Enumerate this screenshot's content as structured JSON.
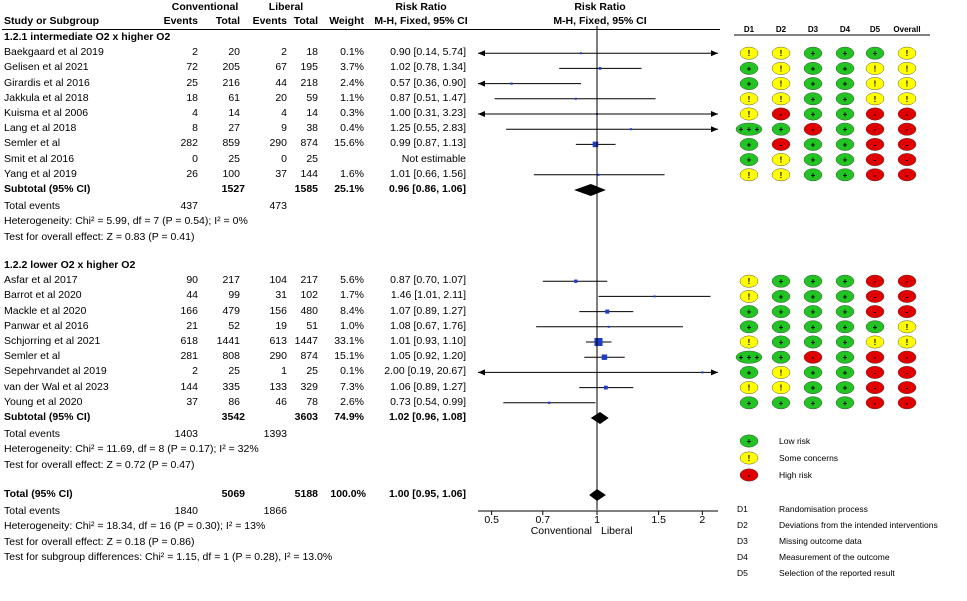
{
  "header": {
    "group1": "Conventional",
    "group2": "Liberal",
    "study_col": "Study or Subgroup",
    "events1": "Events",
    "total1": "Total",
    "events2": "Events",
    "total2": "Total",
    "weight": "Weight",
    "rr_title": "Risk Ratio",
    "rr_method": "M-H, Fixed, 95% CI",
    "plot_title": "Risk Ratio",
    "plot_method": "M-H, Fixed, 95% CI"
  },
  "chart_data": {
    "type": "forest",
    "x_axis": {
      "scale": "log",
      "ticks": [
        {
          "value": 0.5,
          "label": "0.5"
        },
        {
          "value": 0.7,
          "label": "0.7"
        },
        {
          "value": 1,
          "label": "1"
        },
        {
          "value": 1.5,
          "label": "1.5"
        },
        {
          "value": 2,
          "label": "2"
        }
      ],
      "range": [
        0.5,
        2
      ],
      "left_label": "Conventional",
      "right_label": "Liberal"
    },
    "subgroups": [
      {
        "title": "1.2.1 intermediate O2 x higher O2",
        "studies": [
          {
            "name": "Baekgaard et al 2019",
            "e1": "2",
            "t1": "20",
            "e2": "2",
            "t2": "18",
            "weight": "0.1%",
            "ci_text": "0.90 [0.14, 5.74]",
            "rr": 0.9,
            "lo": 0.14,
            "hi": 5.74,
            "rob": [
              "!",
              "!",
              "+",
              "+",
              "+",
              "!"
            ]
          },
          {
            "name": "Gelisen et al 2021",
            "e1": "72",
            "t1": "205",
            "e2": "67",
            "t2": "195",
            "weight": "3.7%",
            "ci_text": "1.02 [0.78, 1.34]",
            "rr": 1.02,
            "lo": 0.78,
            "hi": 1.34,
            "rob": [
              "+",
              "!",
              "+",
              "+",
              "!",
              "!"
            ]
          },
          {
            "name": "Girardis et al 2016",
            "e1": "25",
            "t1": "216",
            "e2": "44",
            "t2": "218",
            "weight": "2.4%",
            "ci_text": "0.57 [0.36, 0.90]",
            "rr": 0.57,
            "lo": 0.36,
            "hi": 0.9,
            "rob": [
              "+",
              "!",
              "+",
              "+",
              "!",
              "!"
            ]
          },
          {
            "name": "Jakkula et al 2018",
            "e1": "18",
            "t1": "61",
            "e2": "20",
            "t2": "59",
            "weight": "1.1%",
            "ci_text": "0.87 [0.51, 1.47]",
            "rr": 0.87,
            "lo": 0.51,
            "hi": 1.47,
            "rob": [
              "!",
              "!",
              "+",
              "+",
              "!",
              "!"
            ]
          },
          {
            "name": "Kuisma et al 2006",
            "e1": "4",
            "t1": "14",
            "e2": "4",
            "t2": "14",
            "weight": "0.3%",
            "ci_text": "1.00 [0.31, 3.23]",
            "rr": 1.0,
            "lo": 0.31,
            "hi": 3.23,
            "rob": [
              "!",
              "-",
              "+",
              "+",
              "-",
              "-"
            ]
          },
          {
            "name": "Lang et al 2018",
            "e1": "8",
            "t1": "27",
            "e2": "9",
            "t2": "38",
            "weight": "0.4%",
            "ci_text": "1.25 [0.55, 2.83]",
            "rr": 1.25,
            "lo": 0.55,
            "hi": 2.83,
            "rob": [
              "+ + +",
              "+",
              "-",
              "+",
              "-",
              "-"
            ]
          },
          {
            "name": "Semler et al",
            "e1": "282",
            "t1": "859",
            "e2": "290",
            "t2": "874",
            "weight": "15.6%",
            "ci_text": "0.99 [0.87, 1.13]",
            "rr": 0.99,
            "lo": 0.87,
            "hi": 1.13,
            "rob": [
              "+",
              "-",
              "+",
              "+",
              "-",
              "-"
            ]
          },
          {
            "name": "Smit et al 2016",
            "e1": "0",
            "t1": "25",
            "e2": "0",
            "t2": "25",
            "weight": "",
            "ci_text": "Not estimable",
            "rr": null,
            "lo": null,
            "hi": null,
            "rob": [
              "+",
              "!",
              "+",
              "+",
              "-",
              "-"
            ]
          },
          {
            "name": "Yang et al 2019",
            "e1": "26",
            "t1": "100",
            "e2": "37",
            "t2": "144",
            "weight": "1.6%",
            "ci_text": "1.01 [0.66, 1.56]",
            "rr": 1.01,
            "lo": 0.66,
            "hi": 1.56,
            "rob": [
              "!",
              "!",
              "+",
              "+",
              "-",
              "-"
            ]
          }
        ],
        "subtotal": {
          "label": "Subtotal (95% CI)",
          "t1": "1527",
          "t2": "1585",
          "weight": "25.1%",
          "ci_text": "0.96 [0.86, 1.06]",
          "rr": 0.96,
          "lo": 0.86,
          "hi": 1.06
        },
        "total_events": {
          "label": "Total events",
          "e1": "437",
          "e2": "473"
        },
        "heterogeneity": "Heterogeneity: Chi² = 5.99, df = 7 (P = 0.54); I² = 0%",
        "overall_effect": "Test for overall effect: Z = 0.83 (P = 0.41)"
      },
      {
        "title": "1.2.2 lower O2 x higher O2",
        "studies": [
          {
            "name": "Asfar et al 2017",
            "e1": "90",
            "t1": "217",
            "e2": "104",
            "t2": "217",
            "weight": "5.6%",
            "ci_text": "0.87 [0.70, 1.07]",
            "rr": 0.87,
            "lo": 0.7,
            "hi": 1.07,
            "rob": [
              "!",
              "+",
              "+",
              "+",
              "-",
              "-"
            ]
          },
          {
            "name": "Barrot et al 2020",
            "e1": "44",
            "t1": "99",
            "e2": "31",
            "t2": "102",
            "weight": "1.7%",
            "ci_text": "1.46 [1.01, 2.11]",
            "rr": 1.46,
            "lo": 1.01,
            "hi": 2.11,
            "rob": [
              "!",
              "+",
              "+",
              "+",
              "-",
              "-"
            ]
          },
          {
            "name": "Mackle et al 2020",
            "e1": "166",
            "t1": "479",
            "e2": "156",
            "t2": "480",
            "weight": "8.4%",
            "ci_text": "1.07 [0.89, 1.27]",
            "rr": 1.07,
            "lo": 0.89,
            "hi": 1.27,
            "rob": [
              "+",
              "+",
              "+",
              "+",
              "-",
              "-"
            ]
          },
          {
            "name": "Panwar et al 2016",
            "e1": "21",
            "t1": "52",
            "e2": "19",
            "t2": "51",
            "weight": "1.0%",
            "ci_text": "1.08 [0.67, 1.76]",
            "rr": 1.08,
            "lo": 0.67,
            "hi": 1.76,
            "rob": [
              "+",
              "+",
              "+",
              "+",
              "+",
              "!"
            ]
          },
          {
            "name": "Schjorring et al 2021",
            "e1": "618",
            "t1": "1441",
            "e2": "613",
            "t2": "1447",
            "weight": "33.1%",
            "ci_text": "1.01 [0.93, 1.10]",
            "rr": 1.01,
            "lo": 0.93,
            "hi": 1.1,
            "rob": [
              "!",
              "+",
              "+",
              "+",
              "!",
              "!"
            ]
          },
          {
            "name": "Semler et al",
            "e1": "281",
            "t1": "808",
            "e2": "290",
            "t2": "874",
            "weight": "15.1%",
            "ci_text": "1.05 [0.92, 1.20]",
            "rr": 1.05,
            "lo": 0.92,
            "hi": 1.2,
            "rob": [
              "+ + +",
              "+",
              "-",
              "+",
              "-",
              "-"
            ]
          },
          {
            "name": "Sepehrvandet al 2019",
            "e1": "2",
            "t1": "25",
            "e2": "1",
            "t2": "25",
            "weight": "0.1%",
            "ci_text": "2.00 [0.19, 20.67]",
            "rr": 2.0,
            "lo": 0.19,
            "hi": 20.67,
            "rob": [
              "+",
              "!",
              "+",
              "+",
              "-",
              "-"
            ]
          },
          {
            "name": "van der Wal et al 2023",
            "e1": "144",
            "t1": "335",
            "e2": "133",
            "t2": "329",
            "weight": "7.3%",
            "ci_text": "1.06 [0.89, 1.27]",
            "rr": 1.06,
            "lo": 0.89,
            "hi": 1.27,
            "rob": [
              "!",
              "!",
              "+",
              "+",
              "-",
              "-"
            ]
          },
          {
            "name": "Young et al 2020",
            "e1": "37",
            "t1": "86",
            "e2": "46",
            "t2": "78",
            "weight": "2.6%",
            "ci_text": "0.73 [0.54, 0.99]",
            "rr": 0.73,
            "lo": 0.54,
            "hi": 0.99,
            "rob": [
              "+",
              "+",
              "+",
              "+",
              "-",
              "-"
            ]
          }
        ],
        "subtotal": {
          "label": "Subtotal (95% CI)",
          "t1": "3542",
          "t2": "3603",
          "weight": "74.9%",
          "ci_text": "1.02 [0.96, 1.08]",
          "rr": 1.02,
          "lo": 0.96,
          "hi": 1.08
        },
        "total_events": {
          "label": "Total events",
          "e1": "1403",
          "e2": "1393"
        },
        "heterogeneity": "Heterogeneity: Chi² = 11.69, df = 8 (P = 0.17); I² = 32%",
        "overall_effect": "Test for overall effect: Z = 0.72 (P = 0.47)"
      }
    ],
    "overall": {
      "label": "Total (95% CI)",
      "t1": "5069",
      "t2": "5188",
      "weight": "100.0%",
      "ci_text": "1.00 [0.95, 1.06]",
      "rr": 1.0,
      "lo": 0.95,
      "hi": 1.06,
      "total_events": {
        "label": "Total events",
        "e1": "1840",
        "e2": "1866"
      },
      "heterogeneity": "Heterogeneity: Chi² = 18.34, df = 16 (P = 0.30); I² = 13%",
      "overall_effect": "Test for overall effect: Z = 0.18 (P = 0.86)",
      "subgroup_diff": "Test for subgroup differences: Chi² = 1.15, df = 1 (P = 0.28), I² = 13.0%"
    }
  },
  "rob": {
    "columns": [
      "D1",
      "D2",
      "D3",
      "D4",
      "D5",
      "Overall"
    ],
    "colors": {
      "+": "#22c322",
      "!": "#ffff00",
      "-": "#e00000"
    },
    "legend": [
      {
        "symbol": "+",
        "label": "Low risk"
      },
      {
        "symbol": "!",
        "label": "Some concerns"
      },
      {
        "symbol": "-",
        "label": "High risk"
      }
    ],
    "domains": [
      {
        "code": "D1",
        "label": "Randomisation process"
      },
      {
        "code": "D2",
        "label": "Deviations from the intended interventions"
      },
      {
        "code": "D3",
        "label": "Missing outcome data"
      },
      {
        "code": "D4",
        "label": "Measurement of the outcome"
      },
      {
        "code": "D5",
        "label": "Selection of the reported result"
      }
    ]
  }
}
